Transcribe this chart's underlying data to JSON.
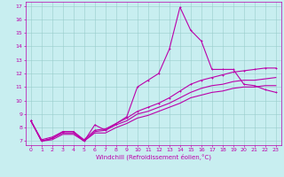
{
  "xlabel": "Windchill (Refroidissement éolien,°C)",
  "xlim": [
    -0.5,
    23.5
  ],
  "ylim": [
    6.7,
    17.3
  ],
  "xticks": [
    0,
    1,
    2,
    3,
    4,
    5,
    6,
    7,
    8,
    9,
    10,
    11,
    12,
    13,
    14,
    15,
    16,
    17,
    18,
    19,
    20,
    21,
    22,
    23
  ],
  "yticks": [
    7,
    8,
    9,
    10,
    11,
    12,
    13,
    14,
    15,
    16,
    17
  ],
  "bg_color": "#c8eef0",
  "line_color": "#bb00aa",
  "grid_color": "#99cccc",
  "line1_y": [
    8.5,
    7.0,
    7.2,
    7.7,
    7.7,
    7.0,
    8.2,
    7.8,
    8.3,
    8.8,
    11.0,
    11.5,
    12.0,
    13.8,
    16.9,
    15.2,
    14.4,
    12.3,
    12.3,
    12.3,
    11.2,
    11.1,
    10.8,
    10.6
  ],
  "line2_y": [
    8.5,
    7.1,
    7.3,
    7.7,
    7.7,
    7.1,
    7.8,
    7.9,
    8.3,
    8.7,
    9.2,
    9.5,
    9.8,
    10.2,
    10.7,
    11.2,
    11.5,
    11.7,
    11.9,
    12.1,
    12.2,
    12.3,
    12.4,
    12.4
  ],
  "line3_y": [
    8.5,
    7.0,
    7.2,
    7.6,
    7.6,
    7.0,
    7.7,
    7.8,
    8.2,
    8.5,
    9.0,
    9.2,
    9.5,
    9.8,
    10.2,
    10.6,
    10.9,
    11.1,
    11.2,
    11.4,
    11.5,
    11.5,
    11.6,
    11.7
  ],
  "line4_y": [
    8.5,
    7.0,
    7.1,
    7.5,
    7.5,
    7.0,
    7.6,
    7.6,
    8.0,
    8.3,
    8.7,
    8.9,
    9.2,
    9.5,
    9.8,
    10.2,
    10.4,
    10.6,
    10.7,
    10.9,
    11.0,
    11.0,
    11.1,
    11.1
  ],
  "xlabel_fontsize": 5.0,
  "tick_fontsize": 4.5,
  "linewidth": 0.8,
  "marker_size": 2.0
}
